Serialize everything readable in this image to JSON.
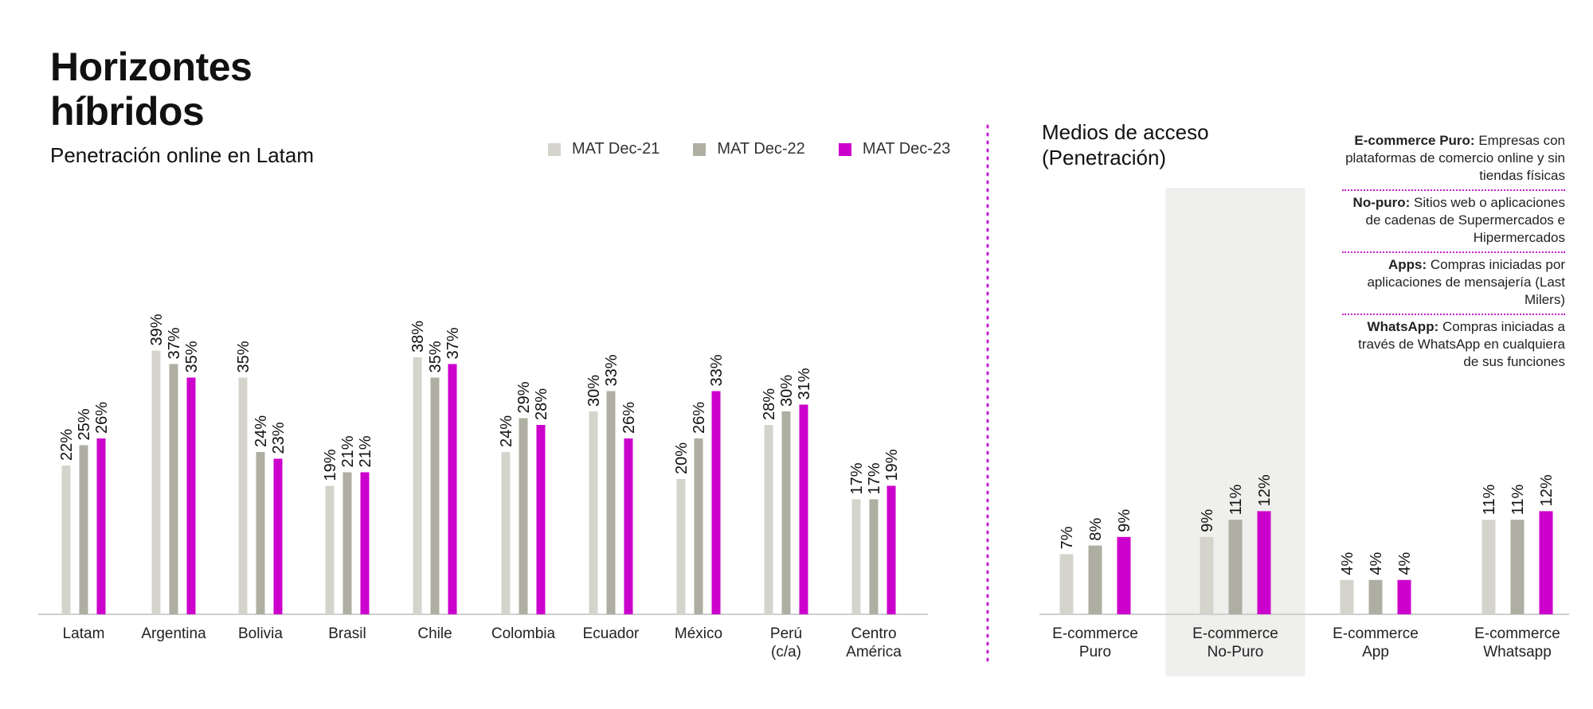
{
  "header": {
    "title_line1": "Horizontes",
    "title_line2": "híbridos",
    "subtitle": "Penetración online en Latam"
  },
  "legend": [
    {
      "label": "MAT Dec-21",
      "color": "#d4d4cc"
    },
    {
      "label": "MAT Dec-22",
      "color": "#aeaea2"
    },
    {
      "label": "MAT Dec-23",
      "color": "#cc00cc"
    }
  ],
  "right_panel": {
    "title_line1": "Medios de acceso",
    "title_line2": "(Penetración)",
    "definitions": [
      {
        "term": "E-commerce Puro:",
        "text": "Empresas con plataformas de comercio online y sin tiendas físicas"
      },
      {
        "term": "No-puro:",
        "text": "Sitios web o aplicaciones de cadenas de Supermercados e Hipermercados"
      },
      {
        "term": "Apps:",
        "text": "Compras iniciadas por aplicaciones de mensajería (Last Milers)"
      },
      {
        "term": "WhatsApp:",
        "text": "Compras iniciadas a través de WhatsApp en cualquiera de sus funciones"
      }
    ]
  },
  "chart_data": [
    {
      "type": "bar",
      "categories": [
        [
          "Latam"
        ],
        [
          "Argentina"
        ],
        [
          "Bolivia"
        ],
        [
          "Brasil"
        ],
        [
          "Chile"
        ],
        [
          "Colombia"
        ],
        [
          "Ecuador"
        ],
        [
          "México"
        ],
        [
          "Perú",
          "(c/a)"
        ],
        [
          "Centro",
          "América"
        ]
      ],
      "series": [
        {
          "name": "MAT Dec-21",
          "values": [
            22,
            39,
            35,
            19,
            38,
            24,
            30,
            20,
            28,
            17
          ]
        },
        {
          "name": "MAT Dec-22",
          "values": [
            25,
            37,
            24,
            21,
            35,
            29,
            33,
            26,
            30,
            17
          ]
        },
        {
          "name": "MAT Dec-23",
          "values": [
            26,
            35,
            23,
            21,
            37,
            28,
            26,
            33,
            31,
            19
          ]
        }
      ],
      "value_suffix": "%"
    },
    {
      "type": "bar",
      "categories": [
        [
          "E-commerce",
          "Puro"
        ],
        [
          "E-commerce",
          "No-Puro"
        ],
        [
          "E-commerce",
          "App"
        ],
        [
          "E-commerce",
          "Whatsapp"
        ]
      ],
      "highlighted_category": 1,
      "series": [
        {
          "name": "MAT Dec-21",
          "values": [
            7,
            9,
            4,
            11
          ]
        },
        {
          "name": "MAT Dec-22",
          "values": [
            8,
            11,
            4,
            11
          ]
        },
        {
          "name": "MAT Dec-23",
          "values": [
            9,
            12,
            4,
            12
          ]
        }
      ],
      "value_suffix": "%"
    }
  ]
}
